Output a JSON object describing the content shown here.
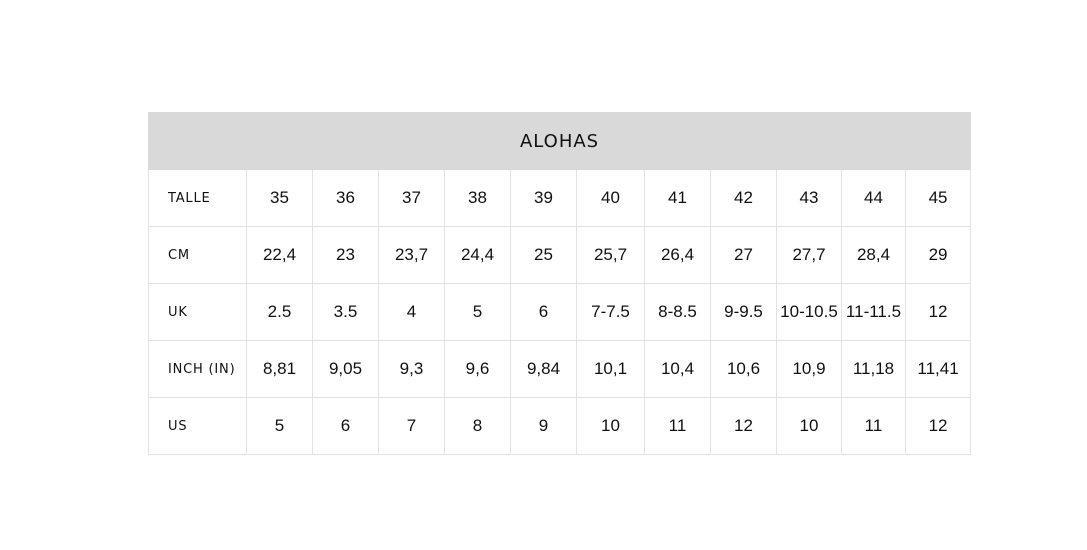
{
  "table": {
    "title": "ALOHAS",
    "rows": [
      {
        "label": "TALLE",
        "cells": [
          "35",
          "36",
          "37",
          "38",
          "39",
          "40",
          "41",
          "42",
          "43",
          "44",
          "45"
        ]
      },
      {
        "label": "CM",
        "cells": [
          "22,4",
          "23",
          "23,7",
          "24,4",
          "25",
          "25,7",
          "26,4",
          "27",
          "27,7",
          "28,4",
          "29"
        ]
      },
      {
        "label": "UK",
        "cells": [
          "2.5",
          "3.5",
          "4",
          "5",
          "6",
          "7-7.5",
          "8-8.5",
          "9-9.5",
          "10-10.5",
          "11-11.5",
          "12"
        ]
      },
      {
        "label": "INCH (IN)",
        "cells": [
          "8,81",
          "9,05",
          "9,3",
          "9,6",
          "9,84",
          "10,1",
          "10,4",
          "10,6",
          "10,9",
          "11,18",
          "11,41"
        ]
      },
      {
        "label": "US",
        "cells": [
          "5",
          "6",
          "7",
          "8",
          "9",
          "10",
          "11",
          "12",
          "10",
          "11",
          "12"
        ]
      }
    ]
  }
}
